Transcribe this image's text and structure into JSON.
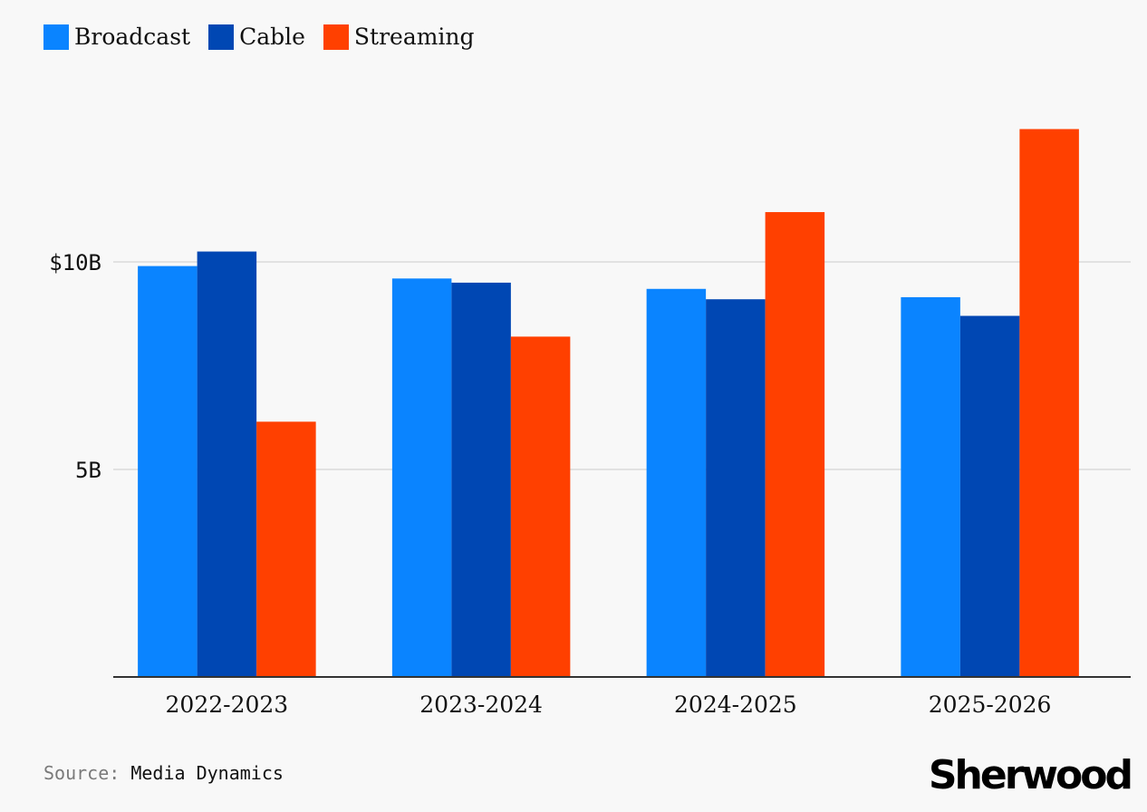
{
  "colors": {
    "broadcast": "#0a84ff",
    "cable": "#0047b3",
    "streaming": "#ff4000",
    "gridline": "#e2e2e2",
    "axis": "#333333"
  },
  "legend": {
    "items": [
      {
        "label": "Broadcast",
        "color": "#0a84ff"
      },
      {
        "label": "Cable",
        "color": "#0047b3"
      },
      {
        "label": "Streaming",
        "color": "#ff4000"
      }
    ]
  },
  "chart_data": {
    "type": "bar",
    "title": "",
    "xlabel": "",
    "ylabel": "",
    "categories": [
      "2022-2023",
      "2023-2024",
      "2024-2025",
      "2025-2026"
    ],
    "series": [
      {
        "name": "Broadcast",
        "values": [
          9.9,
          9.6,
          9.35,
          9.15
        ]
      },
      {
        "name": "Cable",
        "values": [
          10.25,
          9.5,
          9.1,
          8.7
        ]
      },
      {
        "name": "Streaming",
        "values": [
          6.15,
          8.2,
          11.2,
          13.2
        ]
      }
    ],
    "y_ticks": [
      {
        "value": 5,
        "label": "5B"
      },
      {
        "value": 10,
        "label": "$10B"
      }
    ],
    "ylim": [
      0,
      15
    ],
    "grid": "horizontal",
    "legend_position": "top-left"
  },
  "footer": {
    "source_label": "Source:",
    "source_value": "Media Dynamics",
    "logo": "Sherwood"
  }
}
